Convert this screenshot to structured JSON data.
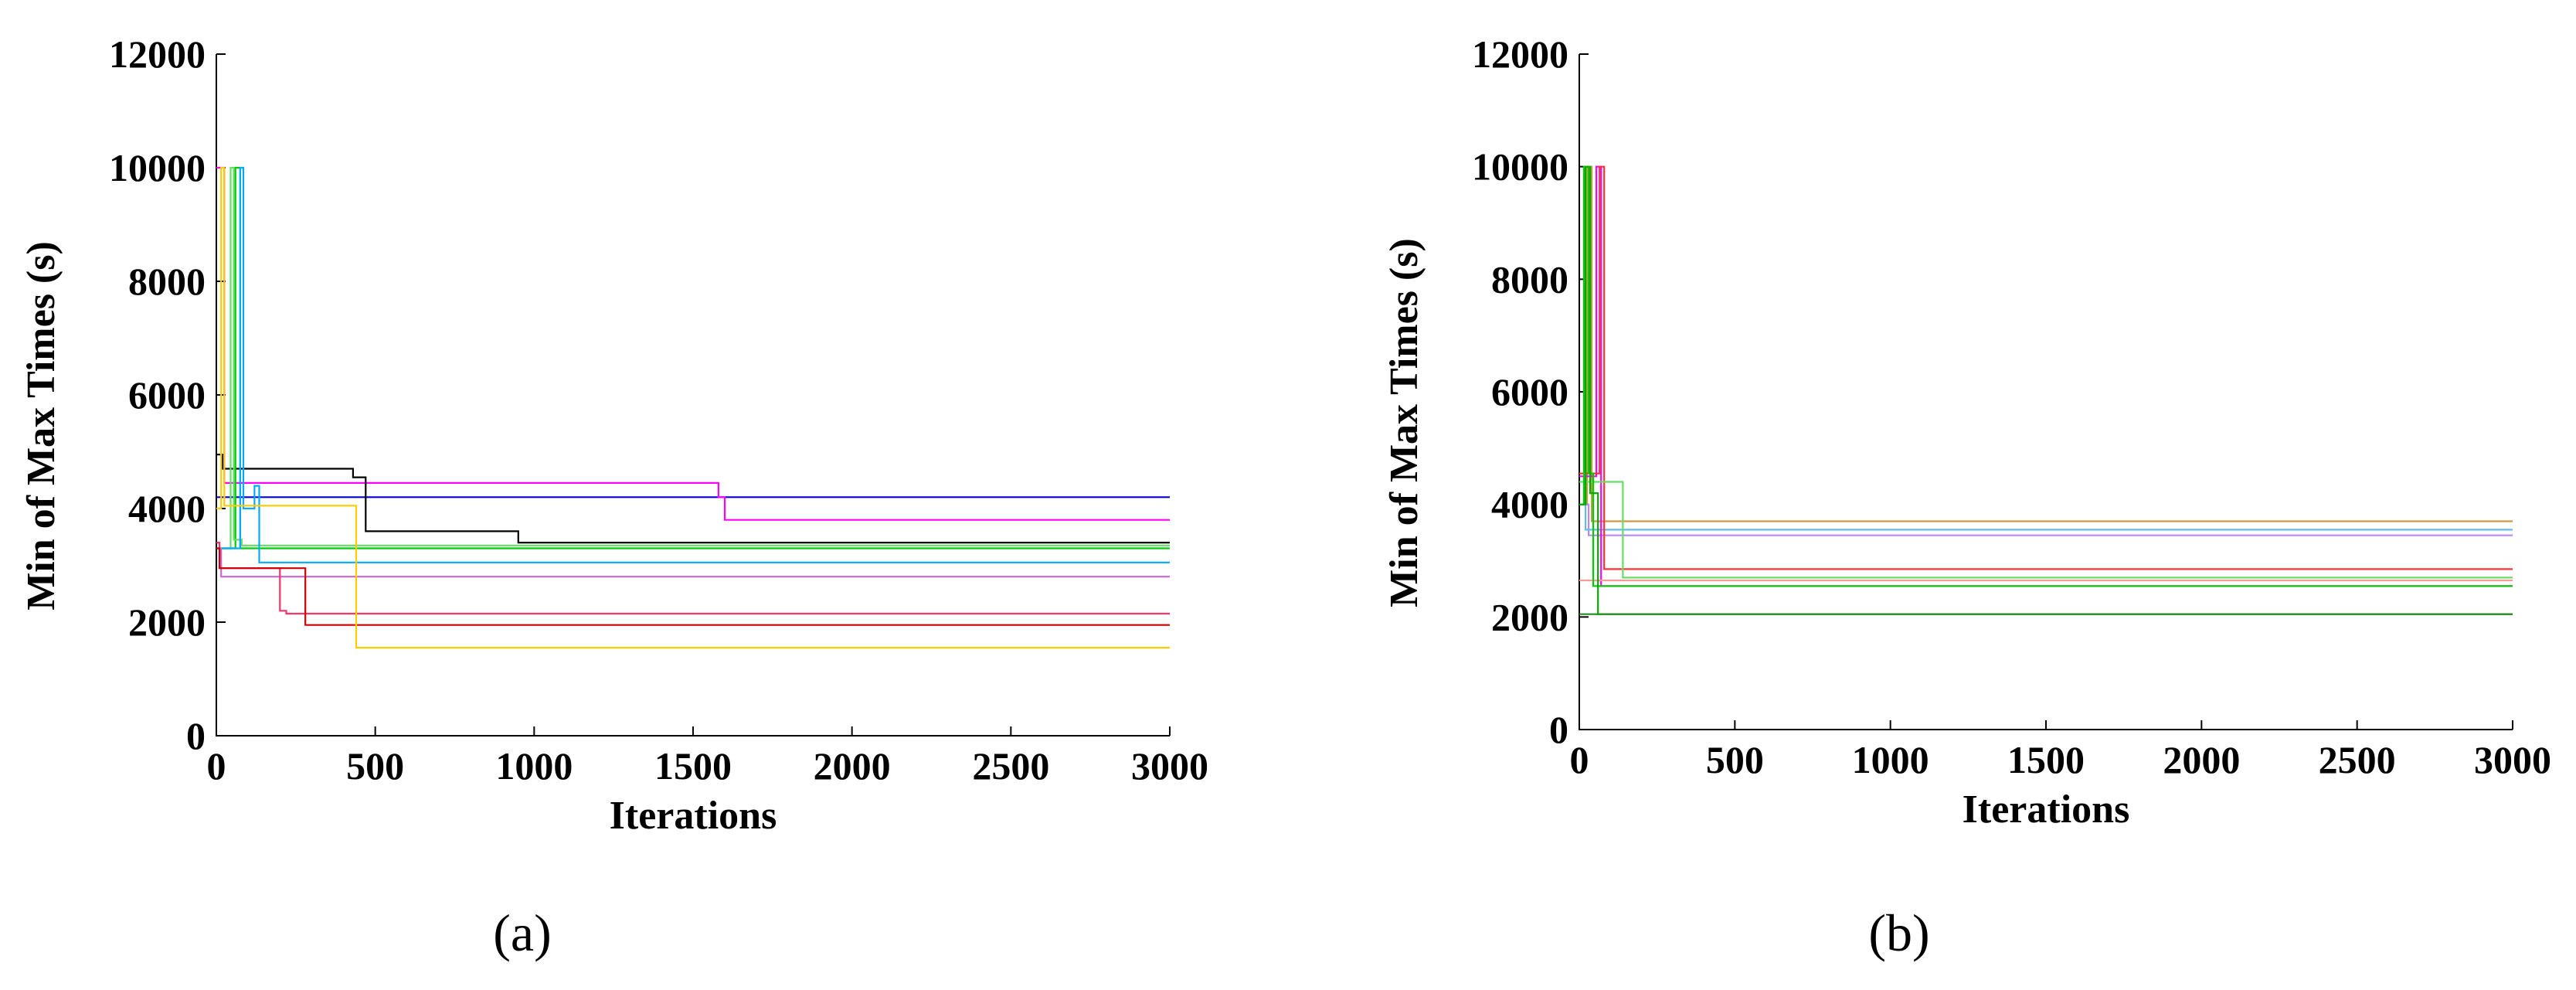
{
  "chart_data": [
    {
      "type": "line",
      "panel_label": "(a)",
      "xlabel": "Iterations",
      "ylabel": "Min of Max Times (s)",
      "xlim": [
        0,
        3000
      ],
      "ylim": [
        0,
        12000
      ],
      "xticks": [
        "0",
        "500",
        "1000",
        "1500",
        "2000",
        "2500",
        "3000"
      ],
      "yticks": [
        "0",
        "2000",
        "4000",
        "6000",
        "8000",
        "10000",
        "12000"
      ],
      "grid": false,
      "series": [
        {
          "color": "#0000cc",
          "x": [
            0,
            40,
            40,
            3000
          ],
          "y": [
            4200,
            4200,
            4200,
            4200
          ]
        },
        {
          "color": "#ff00ff",
          "x": [
            0,
            25,
            25,
            1580,
            1580,
            1600,
            1600,
            3000
          ],
          "y": [
            10000,
            10000,
            4450,
            4450,
            4200,
            4200,
            3800,
            3800
          ]
        },
        {
          "color": "#000000",
          "x": [
            0,
            20,
            20,
            430,
            430,
            470,
            470,
            950,
            950,
            3000
          ],
          "y": [
            4950,
            4950,
            4700,
            4700,
            4550,
            4550,
            3600,
            3600,
            3400,
            3400
          ]
        },
        {
          "color": "#00cc00",
          "x": [
            0,
            60,
            60,
            75,
            75,
            3000
          ],
          "y": [
            3300,
            3300,
            10000,
            10000,
            3300,
            3300
          ]
        },
        {
          "color": "#66dd66",
          "x": [
            0,
            45,
            45,
            55,
            55,
            80,
            80,
            3000
          ],
          "y": [
            3300,
            3300,
            10000,
            10000,
            3450,
            3450,
            3350,
            3350
          ]
        },
        {
          "color": "#00aaff",
          "x": [
            0,
            75,
            75,
            85,
            85,
            120,
            120,
            135,
            135,
            3000
          ],
          "y": [
            3300,
            3300,
            10000,
            10000,
            4000,
            4000,
            4400,
            4400,
            3050,
            3050
          ]
        },
        {
          "color": "#cc66cc",
          "x": [
            0,
            15,
            15,
            3000
          ],
          "y": [
            3300,
            3300,
            2800,
            2800
          ]
        },
        {
          "color": "#ff3366",
          "x": [
            0,
            10,
            10,
            200,
            200,
            220,
            220,
            3000
          ],
          "y": [
            3400,
            3400,
            2950,
            2950,
            2200,
            2200,
            2150,
            2150
          ]
        },
        {
          "color": "#cc0000",
          "x": [
            0,
            10,
            10,
            280,
            280,
            3000
          ],
          "y": [
            3300,
            3300,
            2950,
            2950,
            1950,
            1950
          ]
        },
        {
          "color": "#ffcc00",
          "x": [
            0,
            15,
            15,
            25,
            25,
            60,
            60,
            440,
            440,
            3000
          ],
          "y": [
            4000,
            4000,
            10000,
            10000,
            4050,
            4050,
            4050,
            4050,
            1550,
            1550
          ]
        }
      ]
    },
    {
      "type": "line",
      "panel_label": "(b)",
      "xlabel": "Iterations",
      "ylabel": "Min of Max Times (s)",
      "xlim": [
        0,
        3000
      ],
      "ylim": [
        0,
        12000
      ],
      "xticks": [
        "0",
        "500",
        "1000",
        "1500",
        "2000",
        "2500",
        "3000"
      ],
      "yticks": [
        "0",
        "2000",
        "4000",
        "6000",
        "8000",
        "10000",
        "12000"
      ],
      "grid": false,
      "series": [
        {
          "color": "#cc9944",
          "x": [
            0,
            25,
            25,
            40,
            40,
            3000
          ],
          "y": [
            4000,
            4000,
            10000,
            10000,
            3700,
            3700
          ]
        },
        {
          "color": "#bb88ee",
          "x": [
            0,
            30,
            30,
            3000
          ],
          "y": [
            4000,
            4000,
            3450,
            3450
          ]
        },
        {
          "color": "#66bbee",
          "x": [
            0,
            20,
            20,
            35,
            35,
            3000
          ],
          "y": [
            4000,
            4000,
            3550,
            3550,
            3550,
            3550
          ]
        },
        {
          "color": "#ff00ff",
          "x": [
            0,
            55,
            55,
            70,
            70,
            90,
            90,
            3000
          ],
          "y": [
            4500,
            4500,
            10000,
            10000,
            2550,
            2550,
            2550,
            2550
          ]
        },
        {
          "color": "#ff3333",
          "x": [
            0,
            65,
            65,
            80,
            80,
            3000
          ],
          "y": [
            4550,
            4550,
            10000,
            10000,
            2850,
            2850
          ]
        },
        {
          "color": "#ff9999",
          "x": [
            0,
            3000
          ],
          "y": [
            2650,
            2650
          ]
        },
        {
          "color": "#66dd66",
          "x": [
            0,
            20,
            20,
            140,
            140,
            3000
          ],
          "y": [
            4400,
            4400,
            4400,
            4400,
            2700,
            2700
          ]
        },
        {
          "color": "#00cc00",
          "x": [
            0,
            15,
            15,
            30,
            30,
            45,
            45,
            3000
          ],
          "y": [
            4000,
            4000,
            10000,
            10000,
            4550,
            4550,
            2550,
            2550
          ]
        },
        {
          "color": "#00aa00",
          "x": [
            0,
            20,
            20,
            35,
            35,
            60,
            60,
            3000
          ],
          "y": [
            4000,
            4000,
            10000,
            10000,
            4200,
            4200,
            2050,
            2050
          ]
        },
        {
          "color": "#228b22",
          "x": [
            0,
            3000
          ],
          "y": [
            2050,
            2050
          ]
        }
      ]
    }
  ]
}
